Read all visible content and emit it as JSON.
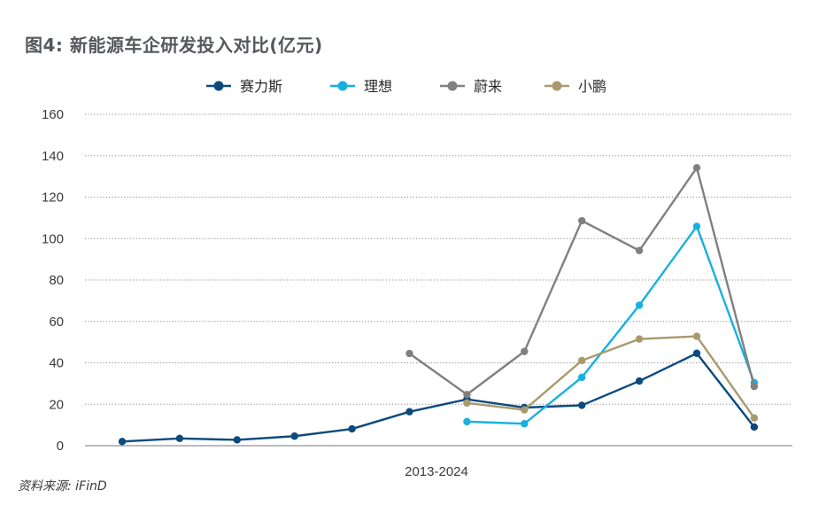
{
  "title": "图4: 新能源车企研发投入对比(亿元)",
  "source": "资料来源: iFinD",
  "chart_data": {
    "type": "line",
    "title": "图4: 新能源车企研发投入对比(亿元)",
    "xlabel": "2013-2024",
    "ylabel": "",
    "ylim": [
      0,
      160
    ],
    "yticks": [
      0,
      20,
      40,
      60,
      80,
      100,
      120,
      140,
      160
    ],
    "grid": "horizontal dotted",
    "legend_position": "top",
    "series": [
      {
        "name": "赛力斯",
        "color": "#0c4a7e",
        "start_index": 0,
        "values": [
          2,
          3.5,
          2.8,
          4.6,
          8.1,
          16.4,
          22.4,
          18.4,
          19.5,
          31.2,
          44.6,
          9
        ]
      },
      {
        "name": "理想",
        "color": "#19b0e0",
        "start_index": 6,
        "values": [
          11.6,
          10.6,
          33,
          67.8,
          105.9,
          30.4
        ]
      },
      {
        "name": "蔚来",
        "color": "#808080",
        "start_index": 5,
        "values": [
          44.5,
          24.7,
          45.5,
          108.6,
          94.2,
          134.2,
          28.6
        ]
      },
      {
        "name": "小鹏",
        "color": "#a99a6e",
        "start_index": 6,
        "values": [
          20.6,
          17.3,
          41.1,
          51.5,
          52.8,
          13.4
        ]
      }
    ]
  }
}
